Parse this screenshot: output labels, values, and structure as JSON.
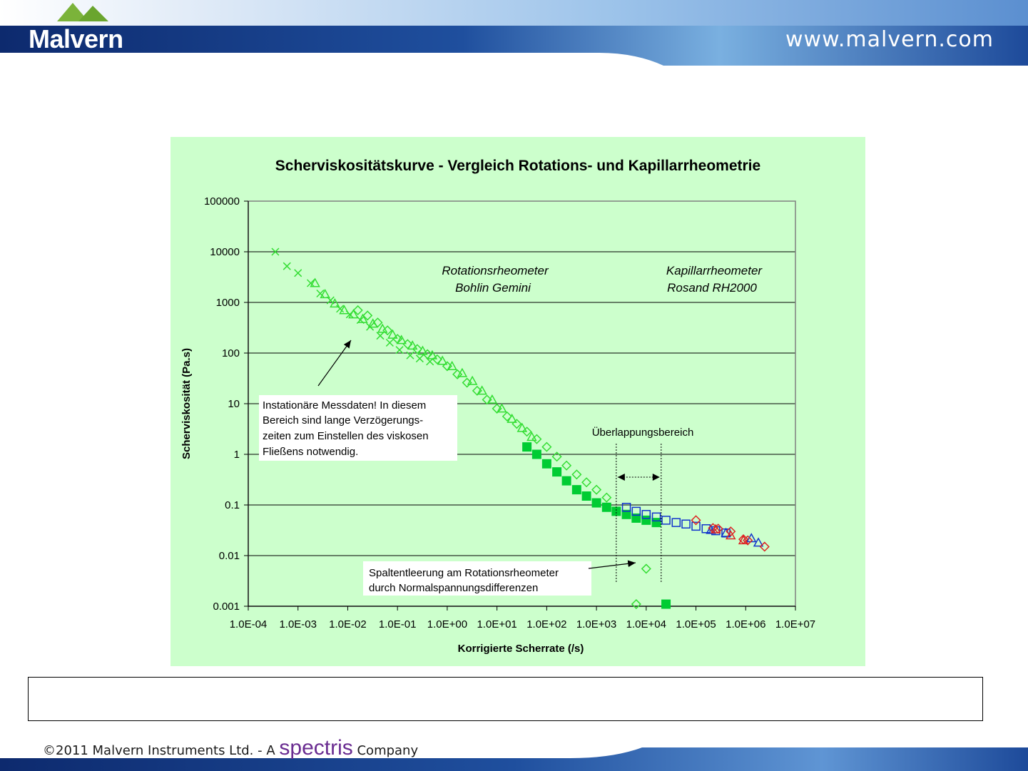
{
  "header": {
    "brand": "Malvern",
    "url": "www.malvern.com",
    "accent": "#1d3f8a"
  },
  "footer": {
    "copyright": "©2011 Malvern Instruments Ltd. - A",
    "partner": "spectris",
    "suffix": "Company"
  },
  "chart_data": {
    "type": "scatter",
    "title": "Scherviskositätskurve - Vergleich Rotations- und Kapillarrheometrie",
    "xlabel": "Korrigierte Scherrate (/s)",
    "ylabel": "Scherviskosität (Pa.s)",
    "x_scale": "log",
    "y_scale": "log",
    "xlim": [
      0.0001,
      10000000
    ],
    "ylim": [
      0.001,
      100000
    ],
    "x_ticks": [
      "1.0E-04",
      "1.0E-03",
      "1.0E-02",
      "1.0E-01",
      "1.0E+00",
      "1.0E+01",
      "1.0E+02",
      "1.0E+03",
      "1.0E+04",
      "1.0E+05",
      "1.0E+06",
      "1.0E+07"
    ],
    "y_ticks": [
      "0.001",
      "0.01",
      "0.1",
      "1",
      "10",
      "100",
      "1000",
      "10000",
      "100000"
    ],
    "grid": "horizontal",
    "background": "#ccffcc",
    "series": [
      {
        "marker": "cross",
        "color": "#33dd33",
        "x": [
          0.00035,
          0.0006,
          0.001,
          0.0018,
          0.0028,
          0.0045,
          0.007,
          0.011,
          0.018,
          0.028,
          0.045,
          0.07,
          0.11,
          0.18,
          0.28,
          0.45
        ],
        "y": [
          10000,
          5200,
          3800,
          2400,
          1500,
          1100,
          750,
          580,
          450,
          330,
          220,
          160,
          115,
          90,
          78,
          68
        ]
      },
      {
        "marker": "triangle",
        "color": "#33dd33",
        "x": [
          0.0022,
          0.0035,
          0.0055,
          0.0085,
          0.013,
          0.02,
          0.032,
          0.05,
          0.08,
          0.12,
          0.2,
          0.32,
          0.5,
          0.8,
          1.25,
          2,
          3.2,
          5,
          8,
          12.5,
          20,
          32,
          50
        ],
        "y": [
          2400,
          1450,
          950,
          700,
          580,
          470,
          380,
          300,
          230,
          180,
          140,
          110,
          90,
          70,
          55,
          40,
          28,
          18,
          12,
          8,
          5,
          3.3,
          2.2
        ]
      },
      {
        "marker": "diamond",
        "color": "#33dd33",
        "x": [
          0.016,
          0.025,
          0.04,
          0.063,
          0.1,
          0.16,
          0.25,
          0.4,
          0.63,
          1,
          1.6,
          2.5,
          4,
          6.3,
          10,
          16,
          25,
          40,
          63,
          100,
          160,
          250,
          400,
          630,
          1000,
          1600,
          6300,
          10000
        ],
        "y": [
          700,
          550,
          400,
          280,
          190,
          150,
          120,
          95,
          75,
          55,
          38,
          26,
          18,
          12,
          8,
          5.6,
          4,
          2.8,
          2,
          1.4,
          0.9,
          0.6,
          0.4,
          0.28,
          0.2,
          0.14,
          0.0011,
          0.0055
        ]
      },
      {
        "marker": "square-filled",
        "color": "#00cc33",
        "x": [
          40,
          63,
          100,
          160,
          250,
          400,
          630,
          1000,
          1600,
          2500,
          4000,
          6300,
          10000,
          16000,
          25000
        ],
        "y": [
          1.4,
          1.0,
          0.65,
          0.45,
          0.3,
          0.2,
          0.15,
          0.11,
          0.09,
          0.075,
          0.065,
          0.055,
          0.05,
          0.045,
          0.0011
        ]
      },
      {
        "marker": "square",
        "color": "#1133cc",
        "x": [
          4000,
          6300,
          10000,
          16000,
          25000,
          40000,
          63000,
          100000,
          160000,
          250000,
          400000
        ],
        "y": [
          0.09,
          0.075,
          0.065,
          0.058,
          0.05,
          0.045,
          0.042,
          0.038,
          0.034,
          0.031,
          0.028
        ]
      },
      {
        "marker": "triangle",
        "color": "#1133cc",
        "x": [
          200000,
          400000,
          1300000,
          1800000
        ],
        "y": [
          0.032,
          0.028,
          0.022,
          0.018
        ]
      },
      {
        "marker": "diamond",
        "color": "#dd2222",
        "x": [
          100000,
          220000,
          280000,
          500000,
          900000,
          1100000,
          2400000
        ],
        "y": [
          0.05,
          0.035,
          0.034,
          0.03,
          0.021,
          0.02,
          0.015
        ]
      },
      {
        "marker": "triangle",
        "color": "#dd2222",
        "x": [
          250000,
          500000,
          900000
        ],
        "y": [
          0.033,
          0.025,
          0.02
        ]
      }
    ],
    "annotations": {
      "rot_label_1": "Rotationsrheometer",
      "rot_label_2": "Bohlin Gemini",
      "cap_label_1": "Kapillarrheometer",
      "cap_label_2": "Rosand RH2000",
      "overlap": "Überlappungsbereich",
      "note_line1": "Instationäre Messdaten! In diesem",
      "note_line2": "Bereich sind lange Verzögerungs-",
      "note_line3": "zeiten zum Einstellen des viskosen",
      "note_line4": "Fließens notwendig.",
      "gap_line1": "Spaltentleerung am Rotationsrheometer",
      "gap_line2": "durch Normalspannungsdifferenzen"
    },
    "overlap_range": [
      2500,
      20000
    ]
  }
}
